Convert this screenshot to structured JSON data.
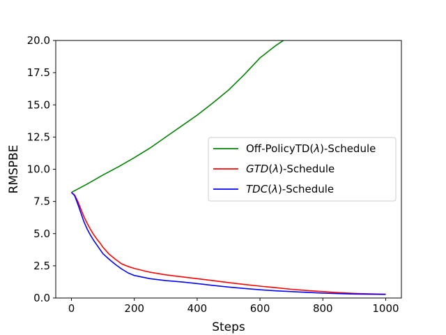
{
  "chart_data": {
    "type": "line",
    "xlabel": "Steps",
    "ylabel": "RMSPBE",
    "xlim": [
      -50,
      1050
    ],
    "ylim": [
      0,
      20
    ],
    "xticks": [
      "0",
      "200",
      "400",
      "600",
      "800",
      "1000"
    ],
    "yticks": [
      "0.0",
      "2.5",
      "5.0",
      "7.5",
      "10.0",
      "12.5",
      "15.0",
      "17.5",
      "20.0"
    ],
    "legend_position": "center-right",
    "grid": false,
    "series": [
      {
        "name": "Off-PolicyTD(λ)-Schedule",
        "legend_parts": [
          {
            "text": "Off-PolicyTD(",
            "italic": false
          },
          {
            "text": "λ",
            "italic": true
          },
          {
            "text": ")-Schedule",
            "italic": false
          }
        ],
        "color": "#008000",
        "x": [
          0,
          50,
          100,
          150,
          200,
          250,
          300,
          350,
          400,
          450,
          500,
          550,
          600,
          650,
          680,
          700
        ],
        "y": [
          8.2,
          8.85,
          9.55,
          10.2,
          10.9,
          11.65,
          12.5,
          13.35,
          14.2,
          15.15,
          16.15,
          17.35,
          18.65,
          19.6,
          20.1,
          20.5
        ]
      },
      {
        "name": "GTD(λ)-Schedule",
        "legend_parts": [
          {
            "text": "GTD",
            "italic": true
          },
          {
            "text": "(",
            "italic": false
          },
          {
            "text": "λ",
            "italic": true
          },
          {
            "text": ")-Schedule",
            "italic": false
          }
        ],
        "color": "#ff0000",
        "x": [
          0,
          10,
          20,
          30,
          40,
          50,
          60,
          70,
          80,
          90,
          100,
          120,
          140,
          160,
          180,
          200,
          250,
          300,
          350,
          400,
          450,
          500,
          550,
          600,
          650,
          700,
          750,
          800,
          850,
          900,
          950,
          1000
        ],
        "y": [
          8.2,
          8.0,
          7.5,
          6.9,
          6.3,
          5.8,
          5.35,
          4.95,
          4.6,
          4.3,
          3.95,
          3.4,
          3.0,
          2.65,
          2.45,
          2.3,
          2.0,
          1.8,
          1.65,
          1.5,
          1.35,
          1.2,
          1.05,
          0.92,
          0.8,
          0.68,
          0.58,
          0.5,
          0.42,
          0.36,
          0.32,
          0.3
        ]
      },
      {
        "name": "TDC(λ)-Schedule",
        "legend_parts": [
          {
            "text": "TDC",
            "italic": true
          },
          {
            "text": "(",
            "italic": false
          },
          {
            "text": "λ",
            "italic": true
          },
          {
            "text": ")-Schedule",
            "italic": false
          }
        ],
        "color": "#0000ff",
        "x": [
          0,
          10,
          20,
          30,
          40,
          50,
          60,
          70,
          80,
          90,
          100,
          120,
          140,
          160,
          180,
          200,
          250,
          300,
          350,
          400,
          450,
          500,
          550,
          600,
          650,
          700,
          750,
          800,
          850,
          900,
          950,
          1000
        ],
        "y": [
          8.2,
          7.95,
          7.3,
          6.6,
          5.9,
          5.35,
          4.9,
          4.5,
          4.15,
          3.8,
          3.45,
          3.0,
          2.6,
          2.25,
          1.95,
          1.75,
          1.5,
          1.35,
          1.25,
          1.12,
          0.98,
          0.85,
          0.74,
          0.64,
          0.56,
          0.5,
          0.44,
          0.38,
          0.34,
          0.31,
          0.29,
          0.28
        ]
      }
    ]
  }
}
